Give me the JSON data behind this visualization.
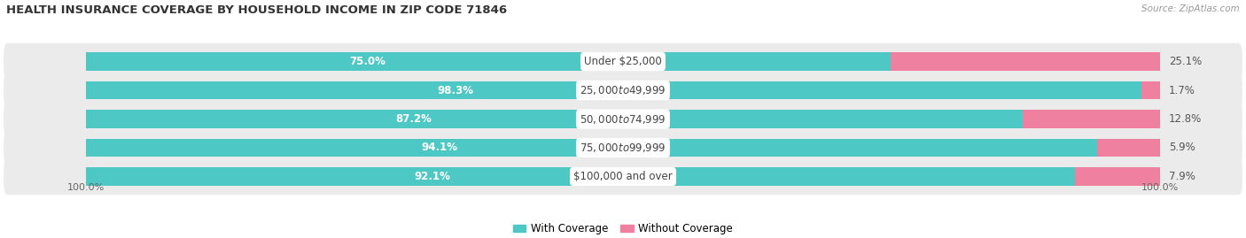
{
  "title": "HEALTH INSURANCE COVERAGE BY HOUSEHOLD INCOME IN ZIP CODE 71846",
  "source": "Source: ZipAtlas.com",
  "categories": [
    "Under $25,000",
    "$25,000 to $49,999",
    "$50,000 to $74,999",
    "$75,000 to $99,999",
    "$100,000 and over"
  ],
  "with_coverage": [
    75.0,
    98.3,
    87.2,
    94.1,
    92.1
  ],
  "without_coverage": [
    25.1,
    1.7,
    12.8,
    5.9,
    7.9
  ],
  "color_with": "#4DC8C4",
  "color_without": "#F080A0",
  "bg_row_color": "#EBEBEB",
  "label_fontsize": 8.5,
  "title_fontsize": 9.5,
  "legend_fontsize": 8.5,
  "tick_fontsize": 8.0,
  "total_scale": 100.0
}
